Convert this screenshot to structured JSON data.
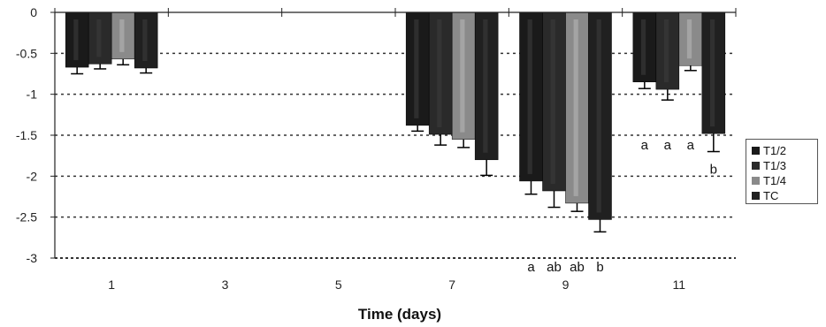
{
  "chart_data": {
    "type": "bar",
    "xlabel": "Time (days)",
    "ylabel": "",
    "ylim": [
      -3,
      0
    ],
    "yticks": [
      0,
      -0.5,
      -1,
      -1.5,
      -2,
      -2.5,
      -3
    ],
    "ytick_labels": [
      "0",
      "-0.5",
      "-1",
      "-1.5",
      "-2",
      "-2.5",
      "-3"
    ],
    "categories": [
      "1",
      "3",
      "5",
      "7",
      "9",
      "11"
    ],
    "grid": "horizontal dotted",
    "legend_position": "right",
    "series": [
      {
        "name": "T1/2",
        "color": "#1a1a1a",
        "values": [
          -0.67,
          null,
          null,
          -1.38,
          -2.06,
          -0.85
        ],
        "errors": [
          0.08,
          null,
          null,
          0.07,
          0.16,
          0.08
        ]
      },
      {
        "name": "T1/3",
        "color": "#2a2a2a",
        "values": [
          -0.63,
          null,
          null,
          -1.49,
          -2.18,
          -0.94
        ],
        "errors": [
          0.06,
          null,
          null,
          0.13,
          0.2,
          0.13
        ]
      },
      {
        "name": "T1/4",
        "color": "#8a8a8a",
        "values": [
          -0.57,
          null,
          null,
          -1.55,
          -2.33,
          -0.65
        ],
        "errors": [
          0.07,
          null,
          null,
          0.1,
          0.1,
          0.06
        ]
      },
      {
        "name": "TC",
        "color": "#202020",
        "values": [
          -0.68,
          null,
          null,
          -1.8,
          -2.53,
          -1.48
        ],
        "errors": [
          0.06,
          null,
          null,
          0.19,
          0.15,
          0.22
        ]
      }
    ],
    "annotations": [
      {
        "category": "9",
        "labels": [
          "a",
          "ab",
          "ab",
          "b"
        ]
      },
      {
        "category": "11",
        "labels": [
          "a",
          "a",
          "a",
          "b"
        ]
      }
    ]
  }
}
